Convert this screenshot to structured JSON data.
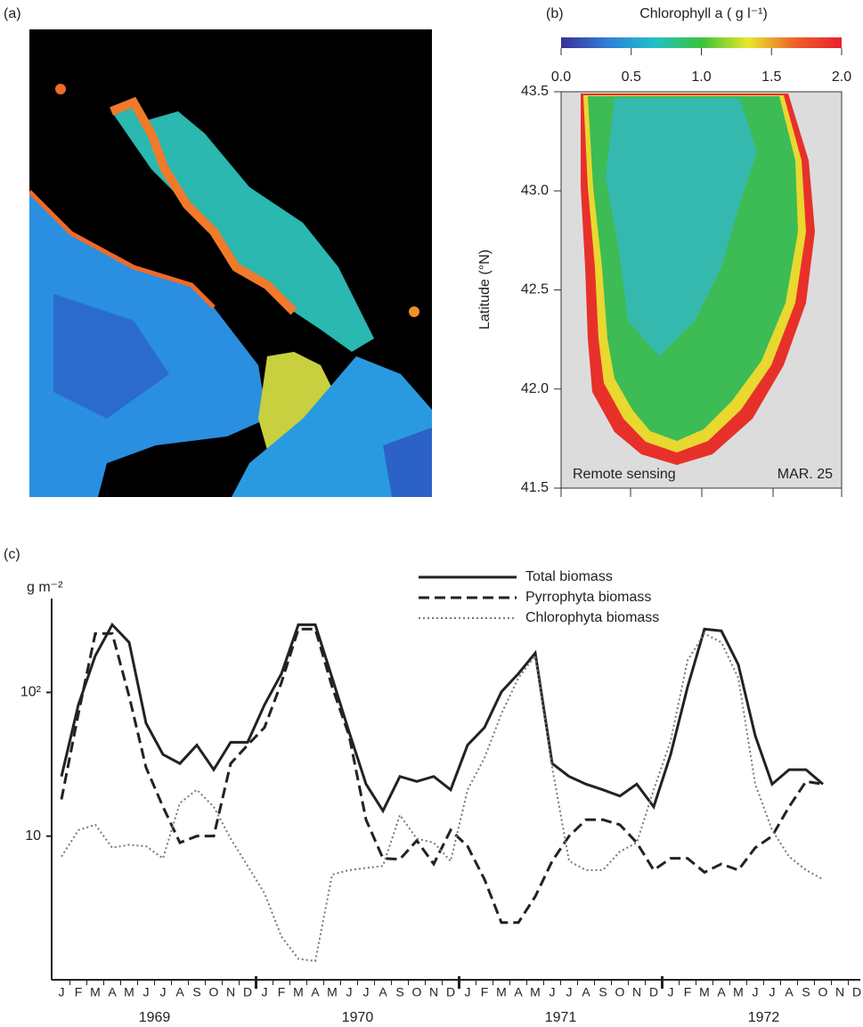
{
  "chart_data": [
    {
      "type": "image",
      "panel_label": "(a)"
    },
    {
      "type": "map",
      "panel_label": "(b)",
      "colorbar_title": "Chlorophyll a ( g l⁻¹)",
      "colorbar_colors": [
        "#3a2f9a",
        "#2f7fd6",
        "#22c1c9",
        "#3ac23a",
        "#e8e82a",
        "#f0602a",
        "#e8202a"
      ],
      "clim": [
        0,
        2
      ],
      "colorbar_ticks": [
        {
          "value": 0,
          "label": "0.0"
        },
        0.5,
        {
          "value": 1,
          "label": "1.0"
        },
        1.5,
        {
          "value": 2,
          "label": "2.0"
        }
      ],
      "ylabel": "Latitude (°N)",
      "ylim": [
        41.5,
        43.5
      ],
      "yticks": [
        43.5,
        {
          "value": 43,
          "label": "43.0"
        },
        42.5,
        {
          "value": 42,
          "label": "42.0"
        },
        41.5
      ],
      "annotations": [
        "Remote sensing",
        "MAR. 25"
      ]
    },
    {
      "type": "line",
      "panel_label": "(c)",
      "ylabel": "g m⁻²",
      "log_scale": true,
      "ylim": [
        1,
        450
      ],
      "yticks": [
        10,
        {
          "value": 100,
          "label": "10²"
        }
      ],
      "categories": [
        "J",
        "F",
        "M",
        "A",
        "M",
        "J",
        "J",
        "A",
        "S",
        "O",
        "N",
        "D",
        "J",
        "F",
        "M",
        "A",
        "M",
        "J",
        "J",
        "A",
        "S",
        "O",
        "N",
        "D",
        "J",
        "F",
        "M",
        "A",
        "M",
        "J",
        "J",
        "A",
        "S",
        "O",
        "N",
        "D",
        "J",
        "F",
        "M",
        "A",
        "M",
        "J",
        "J",
        "A",
        "S",
        "O",
        "N",
        "D"
      ],
      "years": [
        "1969",
        "1970",
        "1971",
        "1972"
      ],
      "legend": "top-right",
      "series": [
        {
          "name": "Total biomass",
          "color": "#222222",
          "dash": "solid",
          "values": [
            26,
            82,
            180,
            296,
            223,
            61,
            37,
            32,
            43,
            29,
            45,
            45,
            82,
            135,
            296,
            296,
            126,
            53,
            23,
            15,
            26,
            24,
            26,
            21,
            43,
            57,
            101,
            135,
            188,
            32,
            26,
            23,
            21,
            19,
            23,
            16,
            37,
            109,
            276,
            268,
            156,
            50,
            23,
            29,
            29,
            23,
            null,
            null
          ]
        },
        {
          "name": "Pyrrophyta biomass",
          "color": "#222222",
          "dash": "dashed",
          "values": [
            18,
            71,
            257,
            257,
            94,
            30,
            16,
            9,
            10,
            10,
            32,
            43,
            57,
            117,
            276,
            276,
            109,
            50,
            13,
            7,
            6.9,
            9.3,
            6.4,
            11,
            8.5,
            5,
            2.5,
            2.5,
            3.8,
            6.7,
            10,
            13,
            13,
            12,
            9,
            5.8,
            7,
            7,
            5.6,
            6.4,
            5.8,
            8.3,
            10,
            16,
            24,
            23,
            null,
            null
          ]
        },
        {
          "name": "Chlorophyta biomass",
          "color": "#777777",
          "dash": "dotted",
          "values": [
            7.2,
            11,
            12,
            8.3,
            8.7,
            8.5,
            7,
            17,
            21,
            16,
            9.6,
            6.2,
            4,
            2,
            1.4,
            1.35,
            5.4,
            5.8,
            6,
            6.2,
            14,
            9.6,
            9,
            6.7,
            21,
            35,
            71,
            126,
            180,
            30,
            6.7,
            5.8,
            5.8,
            7.8,
            9,
            21,
            46,
            167,
            257,
            223,
            126,
            23,
            11,
            7.2,
            5.8,
            5,
            null,
            null
          ]
        }
      ]
    }
  ]
}
